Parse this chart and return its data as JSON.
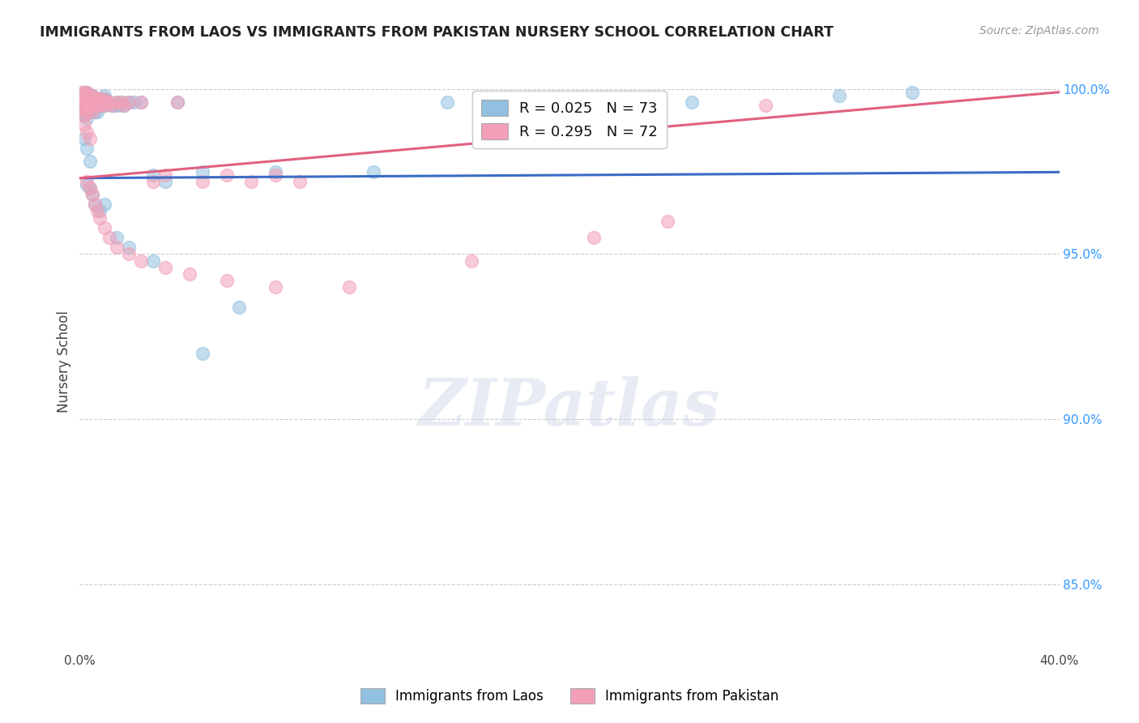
{
  "title": "IMMIGRANTS FROM LAOS VS IMMIGRANTS FROM PAKISTAN NURSERY SCHOOL CORRELATION CHART",
  "source": "Source: ZipAtlas.com",
  "ylabel": "Nursery School",
  "xlim": [
    0.0,
    0.4
  ],
  "ylim": [
    0.83,
    1.005
  ],
  "xticks": [
    0.0,
    0.1,
    0.2,
    0.3,
    0.4
  ],
  "xticklabels": [
    "0.0%",
    "",
    "",
    "",
    "40.0%"
  ],
  "yticks": [
    0.85,
    0.9,
    0.95,
    1.0
  ],
  "yticklabels": [
    "85.0%",
    "90.0%",
    "95.0%",
    "100.0%"
  ],
  "legend_blue_label": "R = 0.025   N = 73",
  "legend_pink_label": "R = 0.295   N = 72",
  "legend_series1": "Immigrants from Laos",
  "legend_series2": "Immigrants from Pakistan",
  "blue_color": "#92C0E0",
  "pink_color": "#F2A0B8",
  "blue_line_color": "#3B6BC4",
  "pink_line_color": "#E06080",
  "watermark": "ZIPatlas",
  "background_color": "#FFFFFF",
  "grid_color": "#CCCCCC",
  "laos_x": [
    0.001,
    0.001,
    0.001,
    0.001,
    0.002,
    0.002,
    0.002,
    0.002,
    0.002,
    0.002,
    0.003,
    0.003,
    0.003,
    0.003,
    0.003,
    0.003,
    0.004,
    0.004,
    0.004,
    0.004,
    0.005,
    0.005,
    0.005,
    0.005,
    0.006,
    0.006,
    0.006,
    0.007,
    0.007,
    0.007,
    0.008,
    0.008,
    0.009,
    0.009,
    0.01,
    0.01,
    0.01,
    0.011,
    0.012,
    0.013,
    0.014,
    0.015,
    0.016,
    0.017,
    0.018,
    0.02,
    0.022,
    0.025,
    0.03,
    0.035,
    0.04,
    0.05,
    0.065,
    0.08,
    0.12,
    0.15,
    0.2,
    0.25,
    0.31,
    0.34,
    0.003,
    0.004,
    0.005,
    0.006,
    0.008,
    0.01,
    0.015,
    0.02,
    0.03,
    0.05,
    0.002,
    0.003,
    0.004
  ],
  "laos_y": [
    0.998,
    0.997,
    0.995,
    0.993,
    0.999,
    0.998,
    0.997,
    0.996,
    0.994,
    0.992,
    0.999,
    0.998,
    0.997,
    0.995,
    0.993,
    0.991,
    0.998,
    0.997,
    0.995,
    0.993,
    0.998,
    0.997,
    0.995,
    0.993,
    0.997,
    0.995,
    0.993,
    0.997,
    0.995,
    0.993,
    0.997,
    0.995,
    0.997,
    0.995,
    0.998,
    0.997,
    0.995,
    0.996,
    0.996,
    0.995,
    0.995,
    0.996,
    0.995,
    0.996,
    0.995,
    0.996,
    0.996,
    0.996,
    0.974,
    0.972,
    0.996,
    0.975,
    0.934,
    0.975,
    0.975,
    0.996,
    0.996,
    0.996,
    0.998,
    0.999,
    0.971,
    0.97,
    0.968,
    0.965,
    0.963,
    0.965,
    0.955,
    0.952,
    0.948,
    0.92,
    0.985,
    0.982,
    0.978
  ],
  "pakistan_x": [
    0.001,
    0.001,
    0.001,
    0.001,
    0.001,
    0.002,
    0.002,
    0.002,
    0.002,
    0.002,
    0.002,
    0.003,
    0.003,
    0.003,
    0.003,
    0.003,
    0.004,
    0.004,
    0.004,
    0.004,
    0.005,
    0.005,
    0.005,
    0.005,
    0.006,
    0.006,
    0.007,
    0.007,
    0.008,
    0.008,
    0.009,
    0.01,
    0.01,
    0.011,
    0.012,
    0.013,
    0.015,
    0.017,
    0.018,
    0.02,
    0.025,
    0.03,
    0.035,
    0.04,
    0.05,
    0.06,
    0.07,
    0.08,
    0.09,
    0.003,
    0.004,
    0.005,
    0.006,
    0.007,
    0.008,
    0.01,
    0.012,
    0.015,
    0.02,
    0.025,
    0.035,
    0.045,
    0.06,
    0.08,
    0.11,
    0.16,
    0.21,
    0.24,
    0.28,
    0.002,
    0.003,
    0.004
  ],
  "pakistan_y": [
    0.999,
    0.998,
    0.997,
    0.996,
    0.994,
    0.999,
    0.998,
    0.997,
    0.996,
    0.994,
    0.992,
    0.999,
    0.998,
    0.997,
    0.995,
    0.993,
    0.998,
    0.997,
    0.996,
    0.994,
    0.998,
    0.997,
    0.995,
    0.993,
    0.997,
    0.995,
    0.997,
    0.995,
    0.997,
    0.995,
    0.996,
    0.997,
    0.995,
    0.996,
    0.996,
    0.995,
    0.996,
    0.996,
    0.995,
    0.996,
    0.996,
    0.972,
    0.974,
    0.996,
    0.972,
    0.974,
    0.972,
    0.974,
    0.972,
    0.972,
    0.97,
    0.968,
    0.965,
    0.963,
    0.961,
    0.958,
    0.955,
    0.952,
    0.95,
    0.948,
    0.946,
    0.944,
    0.942,
    0.94,
    0.94,
    0.948,
    0.955,
    0.96,
    0.995,
    0.989,
    0.987,
    0.985
  ]
}
